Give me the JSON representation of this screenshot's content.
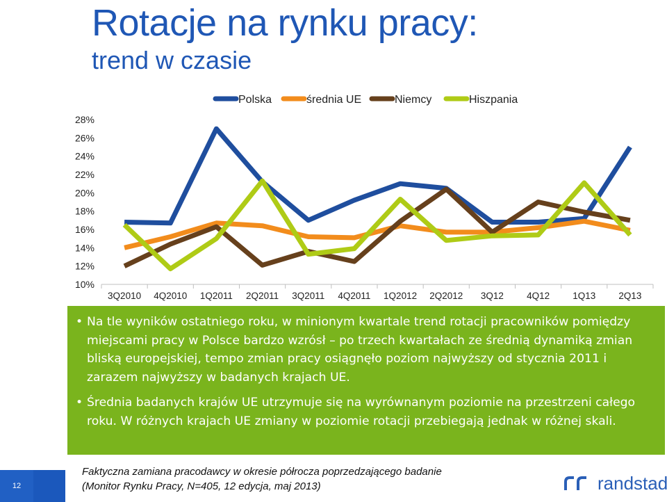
{
  "title": "Rotacje na rynku pracy:",
  "subtitle": "trend w czasie",
  "chart_data": {
    "type": "line",
    "categories": [
      "3Q2010",
      "4Q2010",
      "1Q2011",
      "2Q2011",
      "3Q2011",
      "4Q2011",
      "1Q2012",
      "2Q2012",
      "3Q12",
      "4Q12",
      "1Q13",
      "2Q13"
    ],
    "ylim": [
      10,
      28
    ],
    "yticks": [
      10,
      12,
      14,
      16,
      18,
      20,
      22,
      24,
      26,
      28
    ],
    "ytick_suffix": "%",
    "legend_position": "top",
    "grid": false,
    "series": [
      {
        "name": "Polska",
        "color": "#1f4e9e",
        "values": [
          16.8,
          16.7,
          27.0,
          21.2,
          17.0,
          19.2,
          21.0,
          20.5,
          16.8,
          16.8,
          17.2,
          25.0
        ]
      },
      {
        "name": "średnia UE",
        "color": "#f28c1c",
        "values": [
          14.0,
          15.2,
          16.7,
          16.4,
          15.2,
          15.1,
          16.4,
          15.7,
          15.7,
          16.2,
          16.9,
          15.9
        ]
      },
      {
        "name": "Niemcy",
        "color": "#66401c",
        "values": [
          12.0,
          14.4,
          16.3,
          12.1,
          13.6,
          12.5,
          16.9,
          20.4,
          15.7,
          19.0,
          17.9,
          17.0
        ]
      },
      {
        "name": "Hiszpania",
        "color": "#afcb16",
        "values": [
          16.5,
          11.7,
          15.0,
          21.3,
          13.3,
          13.9,
          19.3,
          14.8,
          15.3,
          15.4,
          21.1,
          15.4
        ]
      }
    ]
  },
  "bullets": [
    "Na tle wyników ostatniego roku, w minionym kwartale trend rotacji pracowników pomiędzy miejscami pracy w Polsce bardzo wzrósł – po trzech kwartałach ze średnią dynamiką zmian bliską europejskiej, tempo zmian pracy osiągnęło poziom najwyższy od stycznia 2011 i zarazem najwyższy w badanych krajach UE.",
    "Średnia badanych krajów UE utrzymuje się na wyrównanym poziomie na przestrzeni całego roku. W różnych krajach UE zmiany w poziomie rotacji przebiegają jednak w różnej skali."
  ],
  "bullet_char": "•",
  "footnote": {
    "line1": "Faktyczna zamiana pracodawcy w okresie półrocza poprzedzającego badanie",
    "line2": "(Monitor Rynku Pracy, N=405, 12 edycja, maj 2013)"
  },
  "page_number": "12",
  "logo_text": "randstad",
  "colors": {
    "title": "#1f57b5",
    "panel": "#7ab41d",
    "accent": "#2160c4"
  }
}
